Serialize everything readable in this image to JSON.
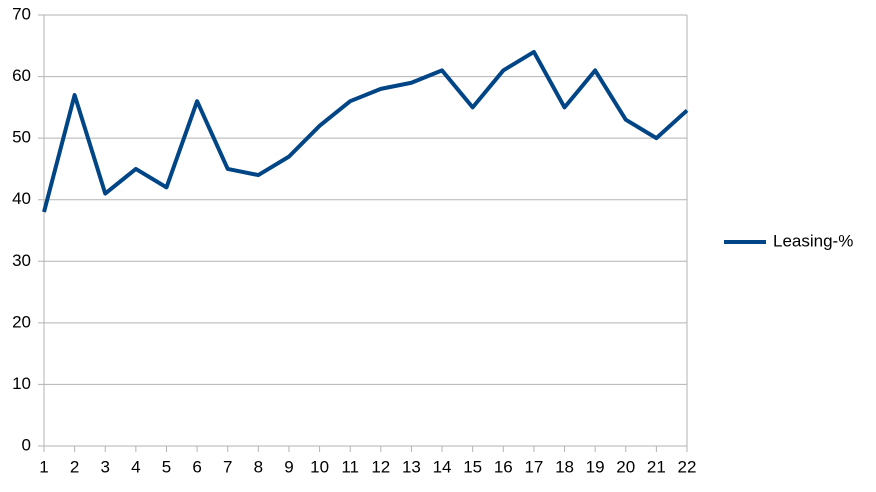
{
  "chart_data": {
    "type": "line",
    "categories": [
      "1",
      "2",
      "3",
      "4",
      "5",
      "6",
      "7",
      "8",
      "9",
      "10",
      "11",
      "12",
      "13",
      "14",
      "15",
      "16",
      "17",
      "18",
      "19",
      "20",
      "21",
      "22"
    ],
    "series": [
      {
        "name": "Leasing-%",
        "color": "#004586",
        "values": [
          38,
          57,
          41,
          45,
          42,
          56,
          45,
          44,
          47,
          52,
          56,
          58,
          59,
          61,
          55,
          61,
          64,
          55,
          61,
          53,
          50,
          54.5
        ]
      }
    ],
    "ylim": [
      0,
      70
    ],
    "yticks": [
      0,
      10,
      20,
      30,
      40,
      50,
      60,
      70
    ],
    "grid": true,
    "legend": "right"
  }
}
